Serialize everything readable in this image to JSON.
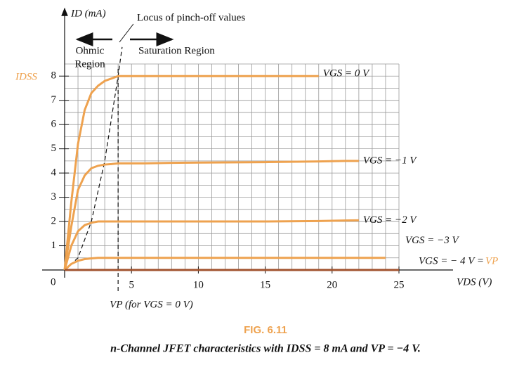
{
  "chart_data": {
    "type": "line",
    "y_label": "ID (mA)",
    "x_label": "VDS (V)",
    "origin_label": "0",
    "idss_label": "IDSS",
    "x": [
      0,
      0.5,
      1,
      1.5,
      2,
      2.5,
      3,
      3.5,
      4,
      5,
      6,
      8,
      10,
      15,
      19,
      21,
      22,
      24,
      25
    ],
    "series": [
      {
        "name": "VGS = 0 V",
        "color": "#eea24f",
        "values": [
          0,
          2.8,
          5.2,
          6.6,
          7.3,
          7.6,
          7.8,
          7.9,
          8,
          8,
          8,
          8,
          8,
          8,
          8,
          null,
          null,
          null,
          null
        ]
      },
      {
        "name": "VGS = −1 V",
        "color": "#eea24f",
        "values": [
          0,
          1.8,
          3.3,
          3.9,
          4.2,
          4.3,
          4.35,
          4.37,
          4.4,
          4.4,
          4.4,
          4.42,
          4.43,
          4.45,
          4.48,
          4.5,
          4.5,
          null,
          null
        ]
      },
      {
        "name": "VGS = −2 V",
        "color": "#eea24f",
        "values": [
          0,
          1,
          1.6,
          1.85,
          1.95,
          2,
          2,
          2,
          2,
          2,
          2,
          2,
          2,
          2,
          2.02,
          2.04,
          2.05,
          null,
          null
        ]
      },
      {
        "name": "VGS = −3 V",
        "color": "#eea24f",
        "values": [
          0,
          0.25,
          0.38,
          0.45,
          0.48,
          0.5,
          0.5,
          0.5,
          0.5,
          0.5,
          0.5,
          0.5,
          0.5,
          0.5,
          0.5,
          0.5,
          0.5,
          0.5,
          null
        ]
      },
      {
        "name": "VGS = − 4 V = ",
        "suffix": "VP",
        "color": "#a0522d",
        "values": [
          0,
          0,
          0,
          0,
          0,
          0,
          0,
          0,
          0,
          0,
          0,
          0,
          0,
          0,
          0,
          0,
          0,
          0,
          0
        ]
      }
    ],
    "locus": {
      "x": [
        0,
        1,
        2,
        3,
        4,
        4.3
      ],
      "values": [
        0,
        0.5,
        2,
        4.5,
        8,
        9.2
      ]
    },
    "pinch_off": {
      "x": 4,
      "label": "VP (for VGS = 0 V)"
    },
    "locus_label": "Locus of pinch-off values",
    "ohmic_label": [
      "Ohmic",
      "Region"
    ],
    "saturation_label": "Saturation Region",
    "xlim": [
      0,
      25
    ],
    "ylim": [
      0,
      8.5
    ],
    "xticks": [
      5,
      10,
      15,
      20,
      25
    ],
    "yticks": [
      1,
      2,
      3,
      4,
      5,
      6,
      7,
      8
    ],
    "grid": true,
    "grid_step_x": 1,
    "grid_step_y": 0.5,
    "caption_title": "FIG. 6.11",
    "caption": "n-Channel JFET characteristics with IDSS = 8 mA and VP = −4 V."
  }
}
